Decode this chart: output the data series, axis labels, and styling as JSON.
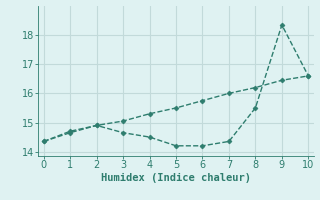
{
  "xlabel": "Humidex (Indice chaleur)",
  "background_color": "#dff2f2",
  "grid_color": "#c2dada",
  "line_color": "#2e7d6e",
  "x_line1": [
    0,
    1,
    2,
    3,
    4,
    5,
    6,
    7,
    8,
    9,
    10
  ],
  "y_line1": [
    14.35,
    14.65,
    14.9,
    14.65,
    14.5,
    14.2,
    14.2,
    14.35,
    15.5,
    18.35,
    16.6
  ],
  "x_line2": [
    0,
    1,
    2,
    3,
    4,
    5,
    6,
    7,
    8,
    9,
    10
  ],
  "y_line2": [
    14.35,
    14.7,
    14.9,
    15.05,
    15.3,
    15.5,
    15.75,
    16.0,
    16.2,
    16.45,
    16.6
  ],
  "xlim": [
    -0.2,
    10.2
  ],
  "ylim": [
    13.85,
    19.0
  ],
  "yticks": [
    14,
    15,
    16,
    17,
    18
  ],
  "xticks": [
    0,
    1,
    2,
    3,
    4,
    5,
    6,
    7,
    8,
    9,
    10
  ],
  "marker": "D",
  "marker_size": 2.5,
  "line_width": 1.0,
  "font_size": 7.5
}
